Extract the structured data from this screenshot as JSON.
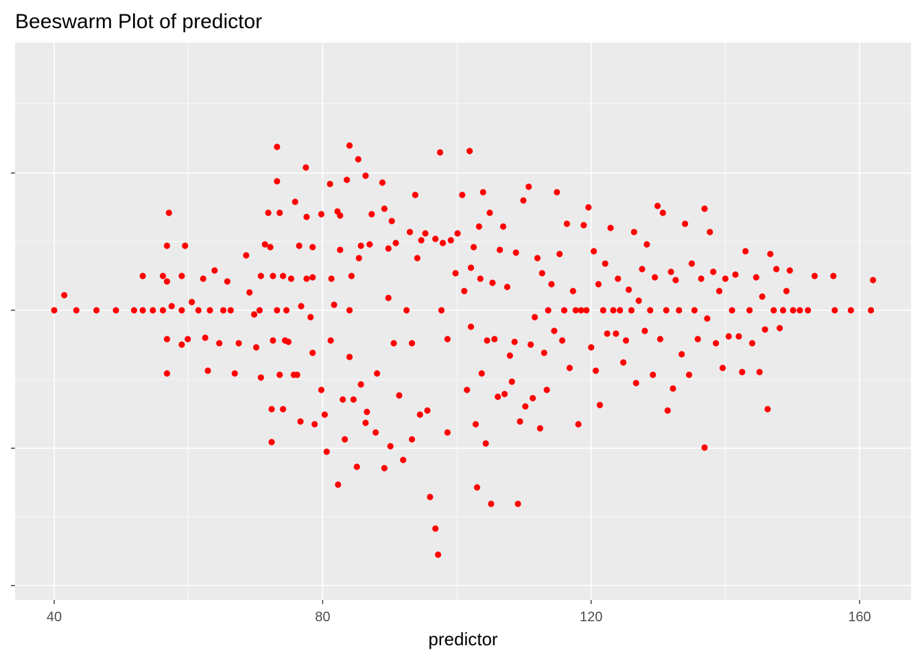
{
  "chart_data": {
    "type": "scatter",
    "subtype": "beeswarm",
    "title": "Beeswarm Plot of predictor",
    "xlabel": "predictor",
    "ylabel": "",
    "xlim": [
      38.5,
      168.5
    ],
    "x_ticks": [
      40,
      80,
      120,
      160
    ],
    "y_ticks_labels": [
      "",
      "",
      ""
    ],
    "grid": true,
    "background": "#ebebeb",
    "grid_color": "#ffffff",
    "point_color": "#ff0000",
    "legend": "none",
    "points": [
      [
        40,
        0
      ],
      [
        41.5,
        0.11
      ],
      [
        43.3,
        0
      ],
      [
        46.3,
        0
      ],
      [
        49.2,
        0
      ],
      [
        51.9,
        0
      ],
      [
        53.2,
        0
      ],
      [
        53.2,
        0.25
      ],
      [
        54.7,
        0
      ],
      [
        56.2,
        0
      ],
      [
        56.2,
        0.25
      ],
      [
        56.8,
        0.47
      ],
      [
        56.8,
        0.21
      ],
      [
        56.8,
        -0.21
      ],
      [
        56.8,
        -0.46
      ],
      [
        57.1,
        0.71
      ],
      [
        57.5,
        0.03
      ],
      [
        59,
        0
      ],
      [
        59,
        0.25
      ],
      [
        59,
        -0.25
      ],
      [
        59.5,
        0.47
      ],
      [
        59.9,
        -0.21
      ],
      [
        60.5,
        0.06
      ],
      [
        61.5,
        0
      ],
      [
        62.2,
        0.23
      ],
      [
        62.5,
        -0.2
      ],
      [
        62.9,
        -0.44
      ],
      [
        63.2,
        0
      ],
      [
        63.9,
        0.29
      ],
      [
        64.6,
        -0.24
      ],
      [
        65.2,
        0
      ],
      [
        65.8,
        0.21
      ],
      [
        66.3,
        0
      ],
      [
        66.9,
        -0.46
      ],
      [
        67.5,
        -0.24
      ],
      [
        68.6,
        0.4
      ],
      [
        69.1,
        0.13
      ],
      [
        69.8,
        -0.03
      ],
      [
        70.1,
        -0.27
      ],
      [
        70.6,
        0
      ],
      [
        70.8,
        -0.49
      ],
      [
        70.8,
        0.25
      ],
      [
        71.4,
        0.48
      ],
      [
        71.9,
        0.71
      ],
      [
        72.2,
        0.46
      ],
      [
        72.4,
        -0.96
      ],
      [
        72.4,
        -0.72
      ],
      [
        72.6,
        -0.22
      ],
      [
        72.6,
        0.25
      ],
      [
        73.2,
        1.19
      ],
      [
        73.2,
        0.94
      ],
      [
        73.2,
        0
      ],
      [
        73.6,
        -0.47
      ],
      [
        73.6,
        0.71
      ],
      [
        74.1,
        -0.72
      ],
      [
        74.1,
        0.25
      ],
      [
        74.4,
        -0.22
      ],
      [
        74.6,
        0
      ],
      [
        74.9,
        -0.23
      ],
      [
        75.3,
        0.23
      ],
      [
        75.7,
        -0.47
      ],
      [
        75.9,
        0.79
      ],
      [
        76.2,
        -0.47
      ],
      [
        76.5,
        0.47
      ],
      [
        76.7,
        -0.81
      ],
      [
        76.8,
        0.03
      ],
      [
        77.5,
        1.04
      ],
      [
        77.6,
        0.68
      ],
      [
        77.6,
        0.23
      ],
      [
        78.2,
        -0.05
      ],
      [
        78.5,
        -0.31
      ],
      [
        78.5,
        0.46
      ],
      [
        78.5,
        0.24
      ],
      [
        78.8,
        -0.83
      ],
      [
        79.8,
        0.7
      ],
      [
        79.8,
        -0.58
      ],
      [
        80.3,
        -0.76
      ],
      [
        80.6,
        -1.03
      ],
      [
        81.1,
        0.92
      ],
      [
        81.2,
        -0.22
      ],
      [
        81.3,
        0.23
      ],
      [
        81.7,
        0.04
      ],
      [
        82.2,
        0.72
      ],
      [
        82.3,
        -1.27
      ],
      [
        82.6,
        0.44
      ],
      [
        82.6,
        0.69
      ],
      [
        83,
        -0.65
      ],
      [
        83.3,
        -0.94
      ],
      [
        83.6,
        0.95
      ],
      [
        84,
        1.2
      ],
      [
        84,
        -0.34
      ],
      [
        84,
        0
      ],
      [
        84.3,
        0.25
      ],
      [
        84.6,
        -0.65
      ],
      [
        85.1,
        -1.14
      ],
      [
        85.3,
        1.1
      ],
      [
        85.4,
        0.38
      ],
      [
        85.7,
        0.47
      ],
      [
        85.7,
        -0.54
      ],
      [
        86.4,
        0.98
      ],
      [
        86.4,
        -0.82
      ],
      [
        86.6,
        -0.74
      ],
      [
        87,
        0.48
      ],
      [
        87.3,
        0.7
      ],
      [
        87.9,
        -0.89
      ],
      [
        88.1,
        -0.46
      ],
      [
        88.9,
        0.93
      ],
      [
        89.2,
        0.74
      ],
      [
        89.2,
        -1.15
      ],
      [
        89.8,
        0.45
      ],
      [
        89.8,
        0.09
      ],
      [
        90.1,
        -0.99
      ],
      [
        90.3,
        0.65
      ],
      [
        90.6,
        -0.24
      ],
      [
        90.9,
        0.49
      ],
      [
        91.4,
        -0.62
      ],
      [
        92,
        -1.09
      ],
      [
        92.5,
        0
      ],
      [
        93,
        0.57
      ],
      [
        93.3,
        -0.24
      ],
      [
        93.3,
        -0.94
      ],
      [
        93.8,
        0.84
      ],
      [
        94.1,
        0.38
      ],
      [
        94.5,
        -0.76
      ],
      [
        94.7,
        0.51
      ],
      [
        95.3,
        0.56
      ],
      [
        95.6,
        -0.73
      ],
      [
        96,
        -1.36
      ],
      [
        96.8,
        0.52
      ],
      [
        96.8,
        -1.59
      ],
      [
        97.2,
        -1.78
      ],
      [
        97.5,
        1.15
      ],
      [
        97.7,
        0
      ],
      [
        97.9,
        0.49
      ],
      [
        98.6,
        -0.21
      ],
      [
        98.6,
        -0.89
      ],
      [
        99.1,
        0.51
      ],
      [
        99.8,
        0.27
      ],
      [
        100.1,
        0.56
      ],
      [
        100.8,
        0.84
      ],
      [
        101.1,
        0.14
      ],
      [
        101.5,
        -0.58
      ],
      [
        101.9,
        1.16
      ],
      [
        102.1,
        -0.12
      ],
      [
        102.1,
        0.31
      ],
      [
        102.5,
        0.46
      ],
      [
        102.8,
        -0.83
      ],
      [
        103,
        -1.29
      ],
      [
        103.3,
        0.61
      ],
      [
        103.5,
        0.23
      ],
      [
        103.7,
        -0.46
      ],
      [
        103.9,
        0.86
      ],
      [
        104.3,
        -0.97
      ],
      [
        104.5,
        -0.22
      ],
      [
        104.9,
        0.71
      ],
      [
        105.1,
        -1.41
      ],
      [
        105.3,
        0.2
      ],
      [
        105.6,
        -0.21
      ],
      [
        106.1,
        -0.63
      ],
      [
        106.4,
        0.44
      ],
      [
        106.9,
        0.61
      ],
      [
        107.1,
        -0.61
      ],
      [
        107.5,
        0.17
      ],
      [
        107.9,
        -0.33
      ],
      [
        108.2,
        -0.52
      ],
      [
        108.6,
        -0.23
      ],
      [
        108.8,
        0.42
      ],
      [
        109.1,
        -1.41
      ],
      [
        109.4,
        -0.81
      ],
      [
        109.9,
        0.8
      ],
      [
        110.2,
        -0.7
      ],
      [
        110.7,
        0.9
      ],
      [
        111,
        -0.25
      ],
      [
        111.3,
        -0.64
      ],
      [
        111.6,
        -0.05
      ],
      [
        112,
        0.38
      ],
      [
        112.4,
        -0.86
      ],
      [
        112.7,
        0.27
      ],
      [
        113,
        -0.31
      ],
      [
        113.4,
        -0.58
      ],
      [
        113.6,
        0
      ],
      [
        114.1,
        0.19
      ],
      [
        114.5,
        -0.15
      ],
      [
        114.9,
        0.86
      ],
      [
        115.3,
        0.41
      ],
      [
        115.7,
        -0.22
      ],
      [
        116,
        0
      ],
      [
        116.4,
        0.63
      ],
      [
        116.8,
        -0.42
      ],
      [
        117.3,
        0.14
      ],
      [
        117.7,
        0
      ],
      [
        118.1,
        -0.83
      ],
      [
        118.5,
        0
      ],
      [
        118.9,
        0.62
      ],
      [
        119.3,
        0
      ],
      [
        119.6,
        0.75
      ],
      [
        120,
        -0.27
      ],
      [
        120.4,
        0.43
      ],
      [
        120.7,
        -0.44
      ],
      [
        121.1,
        0.19
      ],
      [
        121.3,
        -0.69
      ],
      [
        121.8,
        0
      ],
      [
        122.1,
        0.34
      ],
      [
        122.4,
        -0.17
      ],
      [
        122.9,
        0.6
      ],
      [
        123.3,
        0
      ],
      [
        123.7,
        -0.17
      ],
      [
        124,
        0.23
      ],
      [
        124.3,
        0
      ],
      [
        124.8,
        -0.38
      ],
      [
        125.2,
        -0.22
      ],
      [
        125.6,
        0.15
      ],
      [
        126,
        0
      ],
      [
        126.4,
        0.57
      ],
      [
        126.7,
        -0.53
      ],
      [
        127.1,
        0.07
      ],
      [
        127.6,
        0.3
      ],
      [
        128,
        -0.15
      ],
      [
        128.3,
        0.48
      ],
      [
        128.8,
        0
      ],
      [
        129.2,
        -0.47
      ],
      [
        129.5,
        0.24
      ],
      [
        129.9,
        0.76
      ],
      [
        130.3,
        -0.21
      ],
      [
        130.7,
        0.71
      ],
      [
        131.2,
        0
      ],
      [
        131.4,
        -0.73
      ],
      [
        131.9,
        0.28
      ],
      [
        132.2,
        -0.57
      ],
      [
        132.6,
        0.22
      ],
      [
        133.1,
        0
      ],
      [
        133.5,
        -0.32
      ],
      [
        134,
        0.63
      ],
      [
        134.6,
        -0.47
      ],
      [
        135,
        0.34
      ],
      [
        135.4,
        0
      ],
      [
        135.9,
        -0.21
      ],
      [
        136.4,
        0.23
      ],
      [
        136.9,
        0.74
      ],
      [
        136.9,
        -1
      ],
      [
        137.3,
        -0.06
      ],
      [
        137.7,
        0.57
      ],
      [
        138.2,
        0.28
      ],
      [
        138.6,
        -0.24
      ],
      [
        139.1,
        0.14
      ],
      [
        139.6,
        -0.42
      ],
      [
        140,
        0.23
      ],
      [
        140.5,
        -0.19
      ],
      [
        141,
        0
      ],
      [
        141.5,
        0.26
      ],
      [
        142,
        -0.19
      ],
      [
        142.5,
        -0.45
      ],
      [
        143,
        0.43
      ],
      [
        143.6,
        0
      ],
      [
        144,
        -0.24
      ],
      [
        144.6,
        0.24
      ],
      [
        145.1,
        -0.45
      ],
      [
        145.5,
        0.1
      ],
      [
        145.9,
        -0.14
      ],
      [
        146.3,
        -0.72
      ],
      [
        146.7,
        0.41
      ],
      [
        147.2,
        0
      ],
      [
        147.6,
        0.3
      ],
      [
        148.1,
        -0.13
      ],
      [
        148.6,
        0
      ],
      [
        149.1,
        0.14
      ],
      [
        149.6,
        0.29
      ],
      [
        150.1,
        0
      ],
      [
        151.1,
        0
      ],
      [
        152.3,
        0
      ],
      [
        153.3,
        0.25
      ],
      [
        156.1,
        0.25
      ],
      [
        156.3,
        0
      ],
      [
        158.7,
        0
      ],
      [
        161.7,
        0
      ],
      [
        162,
        0.22
      ]
    ]
  }
}
